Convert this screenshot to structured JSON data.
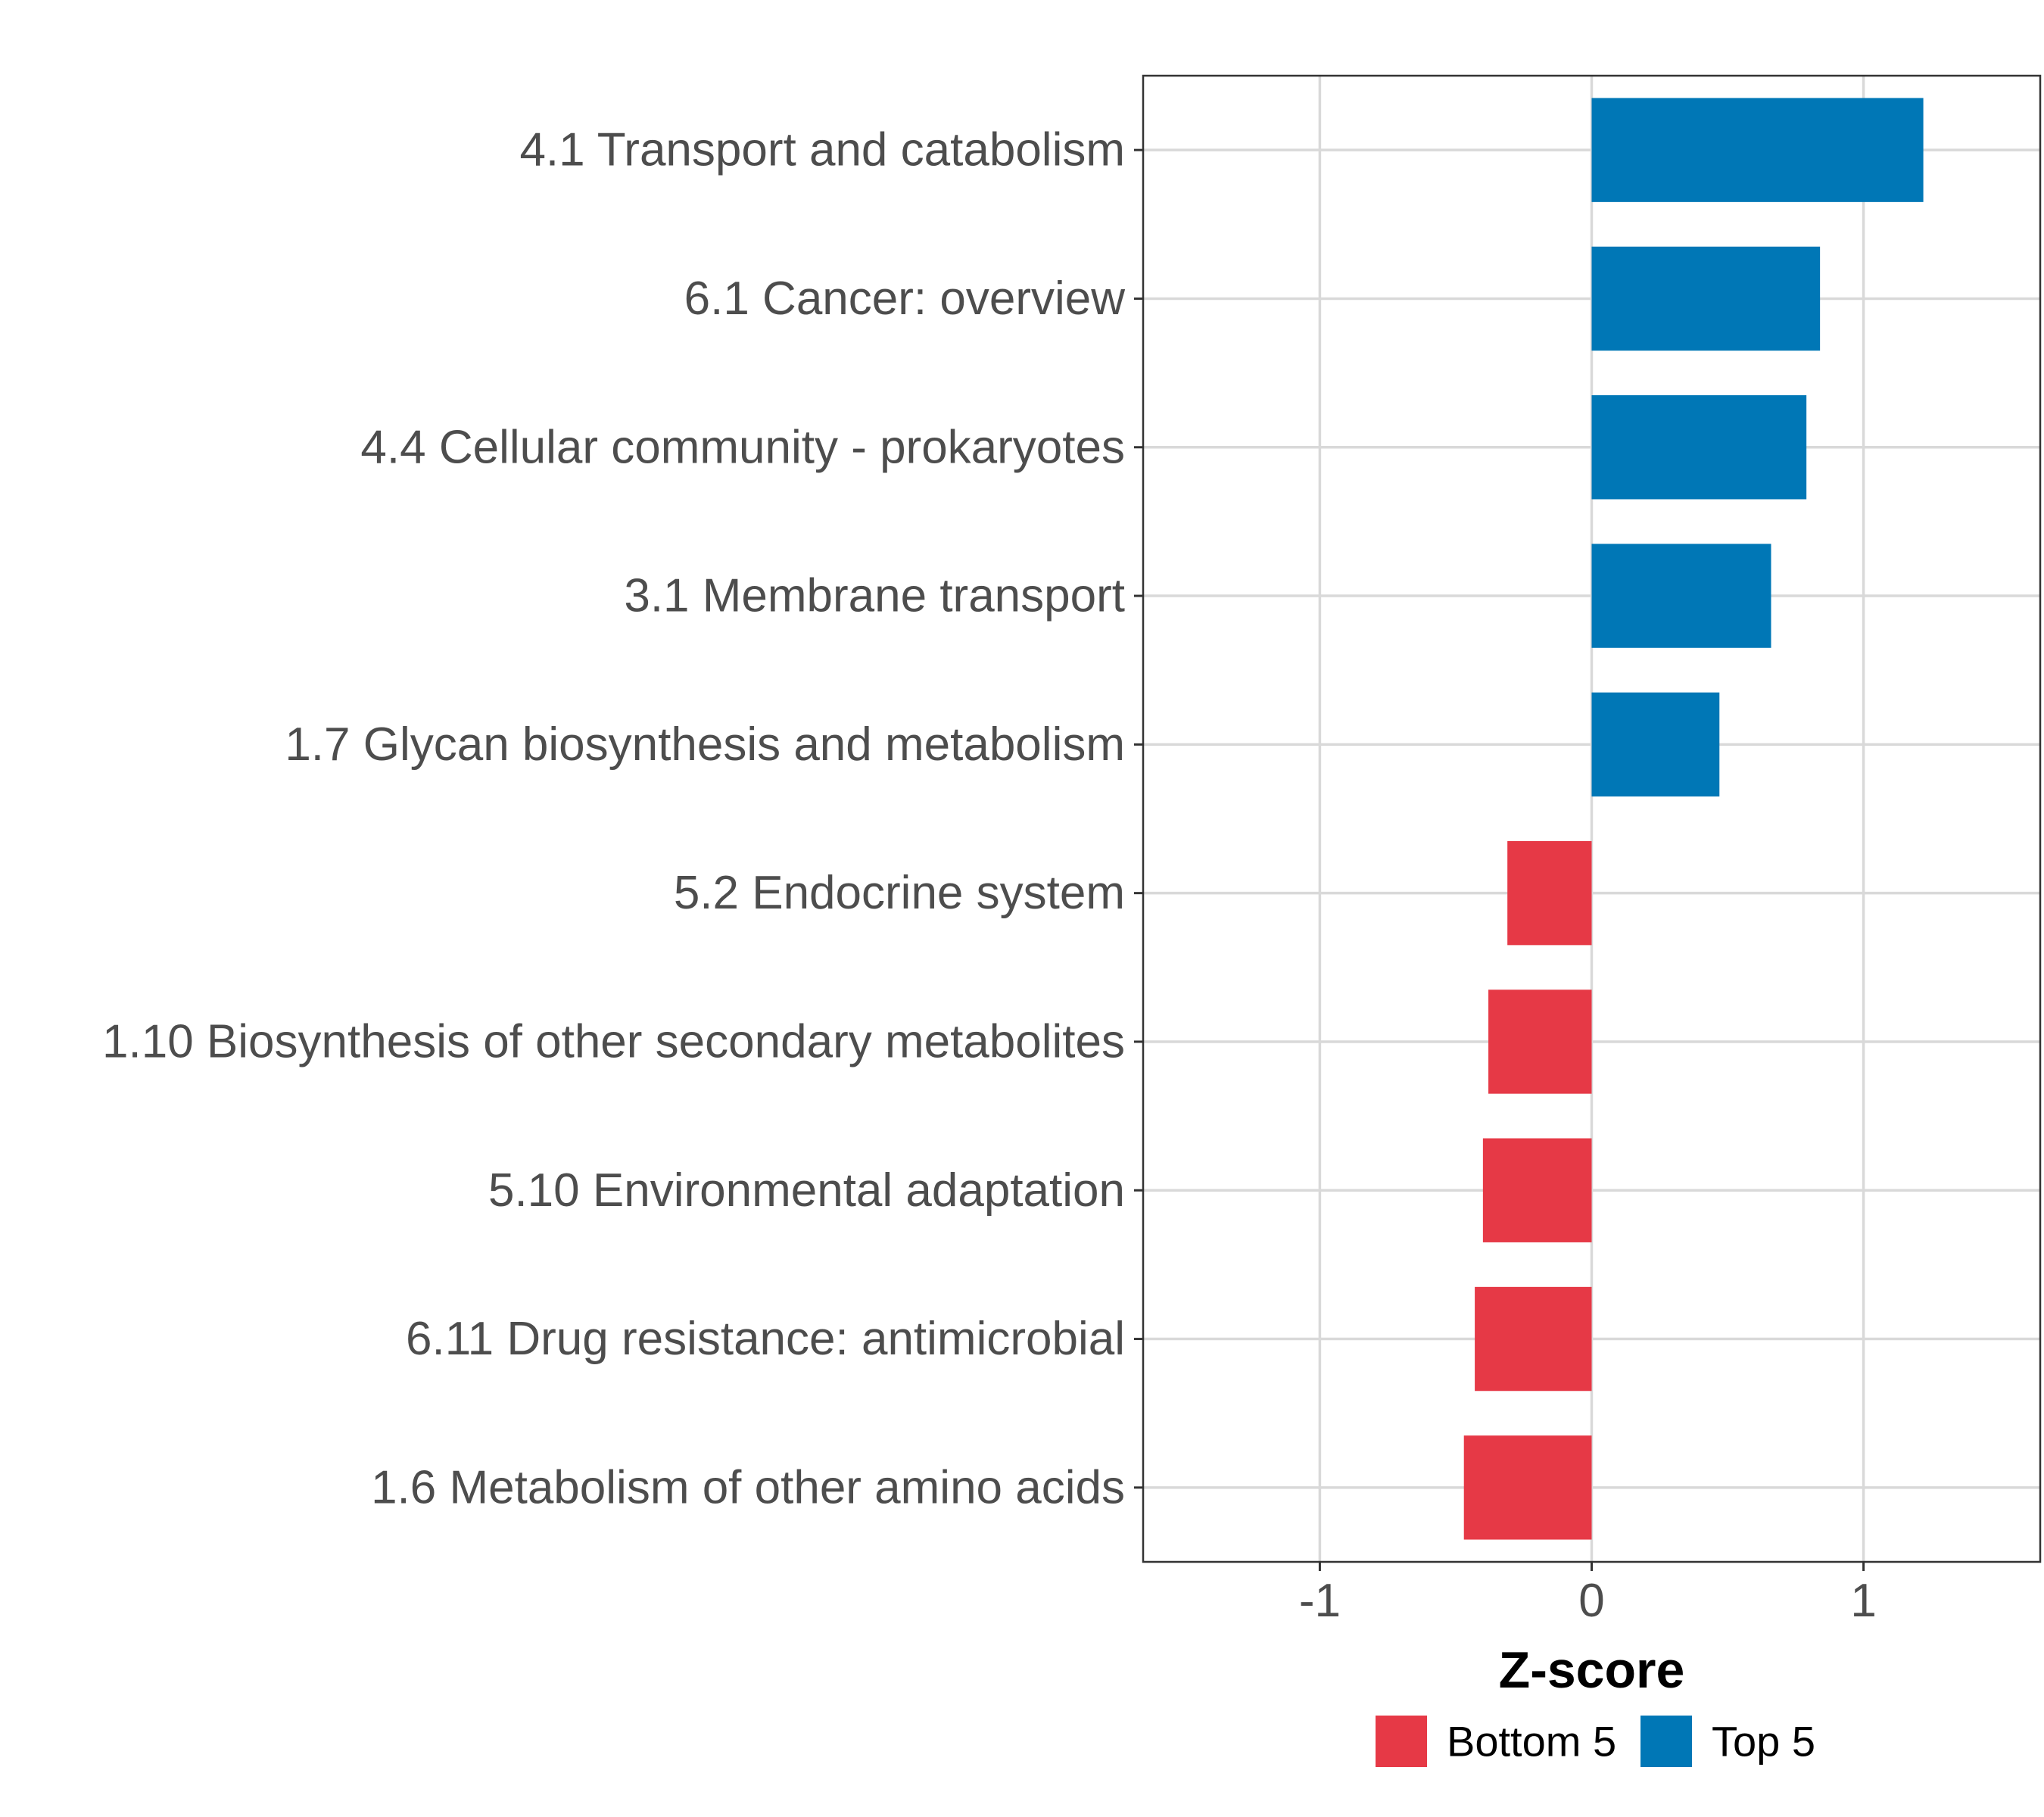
{
  "chart_data": {
    "type": "bar",
    "orientation": "horizontal",
    "categories": [
      "4.1 Transport and catabolism",
      "6.1 Cancer: overview",
      "4.4 Cellular community - prokaryotes",
      "3.1 Membrane transport",
      "1.7 Glycan biosynthesis and metabolism",
      "5.2 Endocrine system",
      "1.10 Biosynthesis of other secondary metabolites",
      "5.10 Environmental adaptation",
      "6.11 Drug resistance: antimicrobial",
      "1.6 Metabolism of other amino acids"
    ],
    "values": [
      1.22,
      0.84,
      0.79,
      0.66,
      0.47,
      -0.31,
      -0.38,
      -0.4,
      -0.43,
      -0.47
    ],
    "groups": [
      "Top 5",
      "Top 5",
      "Top 5",
      "Top 5",
      "Top 5",
      "Bottom 5",
      "Bottom 5",
      "Bottom 5",
      "Bottom 5",
      "Bottom 5"
    ],
    "xlabel": "Z-score",
    "xlim": [
      -1.65,
      1.65
    ],
    "xticks": [
      -1,
      0,
      1
    ],
    "xtick_labels": [
      "-1",
      "0",
      "1"
    ],
    "grid": true,
    "legend": {
      "position": "bottom",
      "entries": [
        {
          "name": "Bottom 5",
          "color": "#e63946"
        },
        {
          "name": "Top 5",
          "color": "#0077b6"
        }
      ]
    },
    "colors": {
      "Top 5": "#0077b6",
      "Bottom 5": "#e63946",
      "grid": "#d9d9d9",
      "border": "#333333"
    }
  }
}
